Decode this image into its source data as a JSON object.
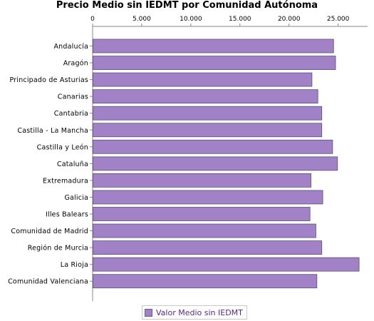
{
  "chart_data": {
    "type": "bar",
    "orientation": "horizontal",
    "title": "Precio Medio sin IEDMT por Comunidad Autónoma",
    "xlim": [
      0,
      28000
    ],
    "x_ticks": [
      0,
      5000,
      10000,
      15000,
      20000,
      25000
    ],
    "x_tick_labels": [
      "0",
      "5.000",
      "10.000",
      "15.000",
      "20.000",
      "25.000"
    ],
    "x_axis_position": "top",
    "grid": false,
    "categories": [
      "Andalucía",
      "Aragón",
      "Principado de Asturias",
      "Canarias",
      "Cantabria",
      "Castilla - La Mancha",
      "Castilla y León",
      "Cataluña",
      "Extremadura",
      "Galicia",
      "Illes Balears",
      "Comunidad de Madrid",
      "Región de Murcia",
      "La Rioja",
      "Comunidad Valenciana"
    ],
    "series": [
      {
        "name": "Valor Medio sin IEDMT",
        "color": "#a182c6",
        "values": [
          24500,
          24700,
          22300,
          22900,
          23300,
          23300,
          24400,
          24900,
          22200,
          23400,
          22100,
          22700,
          23300,
          27100,
          22800
        ]
      }
    ],
    "legend_position": "bottom"
  }
}
